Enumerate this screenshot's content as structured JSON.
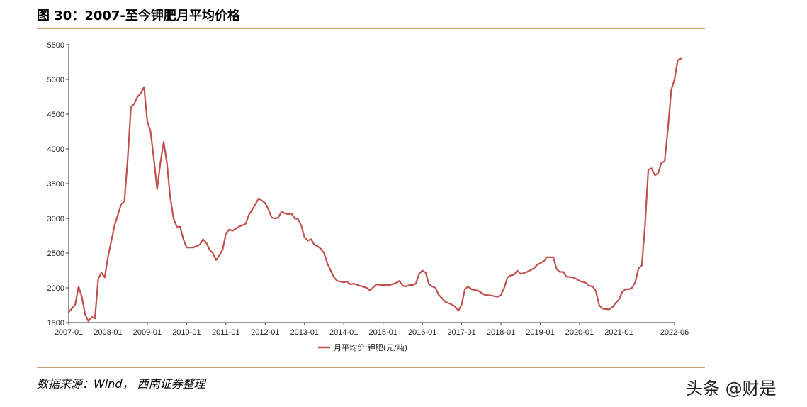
{
  "figure_title": "图 30：2007-至今钾肥月平均价格",
  "source_note": "数据来源：Wind， 西南证券整理",
  "watermark": "头条 @财是",
  "colors": {
    "series": "#c0504d",
    "rule": "#c8a06e",
    "axis": "#333333"
  },
  "chart_data": {
    "type": "line",
    "title": "",
    "xlabel": "",
    "ylabel": "",
    "ylim": [
      1500,
      5500
    ],
    "yticks": [
      1500,
      2000,
      2500,
      3000,
      3500,
      4000,
      4500,
      5000,
      5500
    ],
    "xlim": [
      "2007-01",
      "2022-06"
    ],
    "xticks": [
      "2007-01",
      "2008-01",
      "2009-01",
      "2010-01",
      "2011-01",
      "2012-01",
      "2013-01",
      "2014-01",
      "2015-01",
      "2016-01",
      "2017-01",
      "2018-01",
      "2019-01",
      "2020-01",
      "2021-01",
      "2022-06"
    ],
    "grid": false,
    "legend": "bottom-center",
    "series": [
      {
        "name": "月平均价:钾肥(元/吨)",
        "points": [
          [
            "2007-01",
            1650
          ],
          [
            "2007-03",
            1760
          ],
          [
            "2007-04",
            2020
          ],
          [
            "2007-05",
            1870
          ],
          [
            "2007-06",
            1620
          ],
          [
            "2007-07",
            1520
          ],
          [
            "2007-08",
            1580
          ],
          [
            "2007-09",
            1560
          ],
          [
            "2007-10",
            2130
          ],
          [
            "2007-11",
            2220
          ],
          [
            "2007-12",
            2150
          ],
          [
            "2008-01",
            2450
          ],
          [
            "2008-03",
            2900
          ],
          [
            "2008-05",
            3200
          ],
          [
            "2008-06",
            3250
          ],
          [
            "2008-07",
            3850
          ],
          [
            "2008-08",
            4600
          ],
          [
            "2008-09",
            4650
          ],
          [
            "2008-10",
            4750
          ],
          [
            "2008-11",
            4800
          ],
          [
            "2008-12",
            4890
          ],
          [
            "2009-01",
            4400
          ],
          [
            "2009-02",
            4250
          ],
          [
            "2009-03",
            3850
          ],
          [
            "2009-04",
            3420
          ],
          [
            "2009-05",
            3800
          ],
          [
            "2009-06",
            4100
          ],
          [
            "2009-07",
            3800
          ],
          [
            "2009-08",
            3300
          ],
          [
            "2009-09",
            3000
          ],
          [
            "2009-10",
            2880
          ],
          [
            "2009-11",
            2880
          ],
          [
            "2009-12",
            2700
          ],
          [
            "2010-01",
            2580
          ],
          [
            "2010-03",
            2580
          ],
          [
            "2010-05",
            2620
          ],
          [
            "2010-06",
            2700
          ],
          [
            "2010-07",
            2650
          ],
          [
            "2010-08",
            2550
          ],
          [
            "2010-09",
            2500
          ],
          [
            "2010-10",
            2400
          ],
          [
            "2010-11",
            2470
          ],
          [
            "2010-12",
            2550
          ],
          [
            "2011-01",
            2780
          ],
          [
            "2011-02",
            2840
          ],
          [
            "2011-03",
            2820
          ],
          [
            "2011-05",
            2880
          ],
          [
            "2011-07",
            2920
          ],
          [
            "2011-08",
            3050
          ],
          [
            "2011-10",
            3200
          ],
          [
            "2011-11",
            3290
          ],
          [
            "2012-01",
            3220
          ],
          [
            "2012-02",
            3130
          ],
          [
            "2012-03",
            3010
          ],
          [
            "2012-04",
            3000
          ],
          [
            "2012-05",
            3010
          ],
          [
            "2012-06",
            3100
          ],
          [
            "2012-07",
            3070
          ],
          [
            "2012-08",
            3060
          ],
          [
            "2012-09",
            3070
          ],
          [
            "2012-10",
            3000
          ],
          [
            "2012-11",
            2990
          ],
          [
            "2012-12",
            2900
          ],
          [
            "2013-01",
            2730
          ],
          [
            "2013-02",
            2680
          ],
          [
            "2013-03",
            2700
          ],
          [
            "2013-04",
            2620
          ],
          [
            "2013-05",
            2600
          ],
          [
            "2013-06",
            2560
          ],
          [
            "2013-07",
            2500
          ],
          [
            "2013-08",
            2350
          ],
          [
            "2013-09",
            2250
          ],
          [
            "2013-10",
            2150
          ],
          [
            "2013-11",
            2100
          ],
          [
            "2014-01",
            2080
          ],
          [
            "2014-02",
            2090
          ],
          [
            "2014-03",
            2050
          ],
          [
            "2014-04",
            2060
          ],
          [
            "2014-06",
            2030
          ],
          [
            "2014-08",
            2000
          ],
          [
            "2014-09",
            1960
          ],
          [
            "2014-10",
            2010
          ],
          [
            "2014-11",
            2050
          ],
          [
            "2015-01",
            2040
          ],
          [
            "2015-03",
            2040
          ],
          [
            "2015-05",
            2070
          ],
          [
            "2015-06",
            2100
          ],
          [
            "2015-07",
            2030
          ],
          [
            "2015-08",
            2020
          ],
          [
            "2015-09",
            2040
          ],
          [
            "2015-10",
            2040
          ],
          [
            "2015-11",
            2060
          ],
          [
            "2015-12",
            2200
          ],
          [
            "2016-01",
            2250
          ],
          [
            "2016-02",
            2220
          ],
          [
            "2016-03",
            2050
          ],
          [
            "2016-04",
            2020
          ],
          [
            "2016-05",
            2000
          ],
          [
            "2016-06",
            1900
          ],
          [
            "2016-07",
            1850
          ],
          [
            "2016-08",
            1800
          ],
          [
            "2016-10",
            1760
          ],
          [
            "2016-11",
            1730
          ],
          [
            "2016-12",
            1670
          ],
          [
            "2017-01",
            1760
          ],
          [
            "2017-02",
            1980
          ],
          [
            "2017-03",
            2020
          ],
          [
            "2017-04",
            1980
          ],
          [
            "2017-06",
            1960
          ],
          [
            "2017-07",
            1930
          ],
          [
            "2017-08",
            1900
          ],
          [
            "2017-10",
            1890
          ],
          [
            "2017-12",
            1870
          ],
          [
            "2018-01",
            1900
          ],
          [
            "2018-02",
            2000
          ],
          [
            "2018-03",
            2150
          ],
          [
            "2018-04",
            2180
          ],
          [
            "2018-05",
            2190
          ],
          [
            "2018-06",
            2250
          ],
          [
            "2018-07",
            2200
          ],
          [
            "2018-09",
            2230
          ],
          [
            "2018-11",
            2280
          ],
          [
            "2018-12",
            2330
          ],
          [
            "2019-02",
            2380
          ],
          [
            "2019-03",
            2440
          ],
          [
            "2019-05",
            2440
          ],
          [
            "2019-06",
            2270
          ],
          [
            "2019-07",
            2230
          ],
          [
            "2019-08",
            2230
          ],
          [
            "2019-09",
            2160
          ],
          [
            "2019-11",
            2150
          ],
          [
            "2019-12",
            2130
          ],
          [
            "2020-01",
            2100
          ],
          [
            "2020-03",
            2070
          ],
          [
            "2020-04",
            2030
          ],
          [
            "2020-05",
            2020
          ],
          [
            "2020-06",
            1950
          ],
          [
            "2020-07",
            1750
          ],
          [
            "2020-08",
            1700
          ],
          [
            "2020-10",
            1690
          ],
          [
            "2020-11",
            1720
          ],
          [
            "2020-12",
            1780
          ],
          [
            "2021-01",
            1830
          ],
          [
            "2021-02",
            1940
          ],
          [
            "2021-03",
            1980
          ],
          [
            "2021-04",
            1980
          ],
          [
            "2021-05",
            2000
          ],
          [
            "2021-06",
            2080
          ],
          [
            "2021-07",
            2280
          ],
          [
            "2021-08",
            2320
          ],
          [
            "2021-09",
            2900
          ],
          [
            "2021-10",
            3700
          ],
          [
            "2021-11",
            3720
          ],
          [
            "2021-12",
            3620
          ],
          [
            "2022-01",
            3650
          ],
          [
            "2022-02",
            3800
          ],
          [
            "2022-03",
            3820
          ],
          [
            "2022-04",
            4300
          ],
          [
            "2022-05",
            4850
          ],
          [
            "2022-06",
            5000
          ],
          [
            "2022-07",
            5280
          ],
          [
            "2022-08",
            5300
          ]
        ]
      }
    ]
  }
}
